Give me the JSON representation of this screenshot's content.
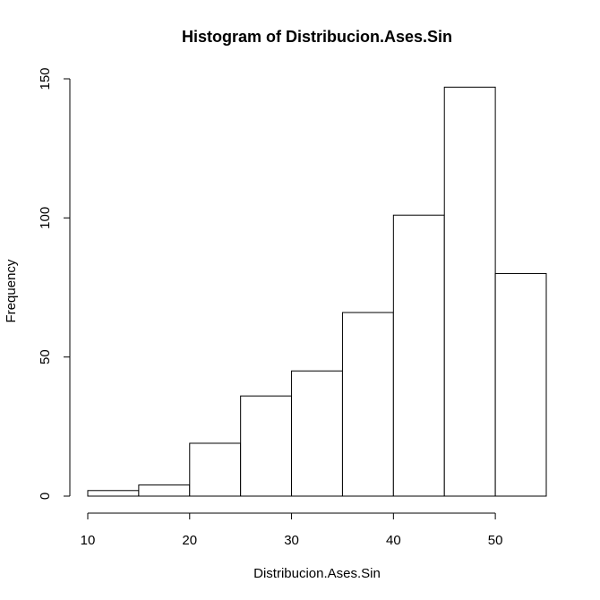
{
  "chart_data": {
    "type": "bar",
    "subtype": "histogram",
    "title": "Histogram of Distribucion.Ases.Sin",
    "xlabel": "Distribucion.Ases.Sin",
    "ylabel": "Frequency",
    "bins": [
      {
        "start": 10,
        "end": 15,
        "value": 2
      },
      {
        "start": 15,
        "end": 20,
        "value": 4
      },
      {
        "start": 20,
        "end": 25,
        "value": 19
      },
      {
        "start": 25,
        "end": 30,
        "value": 36
      },
      {
        "start": 30,
        "end": 35,
        "value": 45
      },
      {
        "start": 35,
        "end": 40,
        "value": 66
      },
      {
        "start": 40,
        "end": 45,
        "value": 101
      },
      {
        "start": 45,
        "end": 50,
        "value": 147
      },
      {
        "start": 50,
        "end": 55,
        "value": 80
      }
    ],
    "xlim": [
      10,
      55
    ],
    "ylim": [
      0,
      150
    ],
    "xticks": [
      10,
      20,
      30,
      40,
      50
    ],
    "yticks": [
      0,
      50,
      100,
      150
    ],
    "grid": false,
    "legend": "none",
    "bar_fill": "#ffffff",
    "bar_stroke": "#000000"
  }
}
